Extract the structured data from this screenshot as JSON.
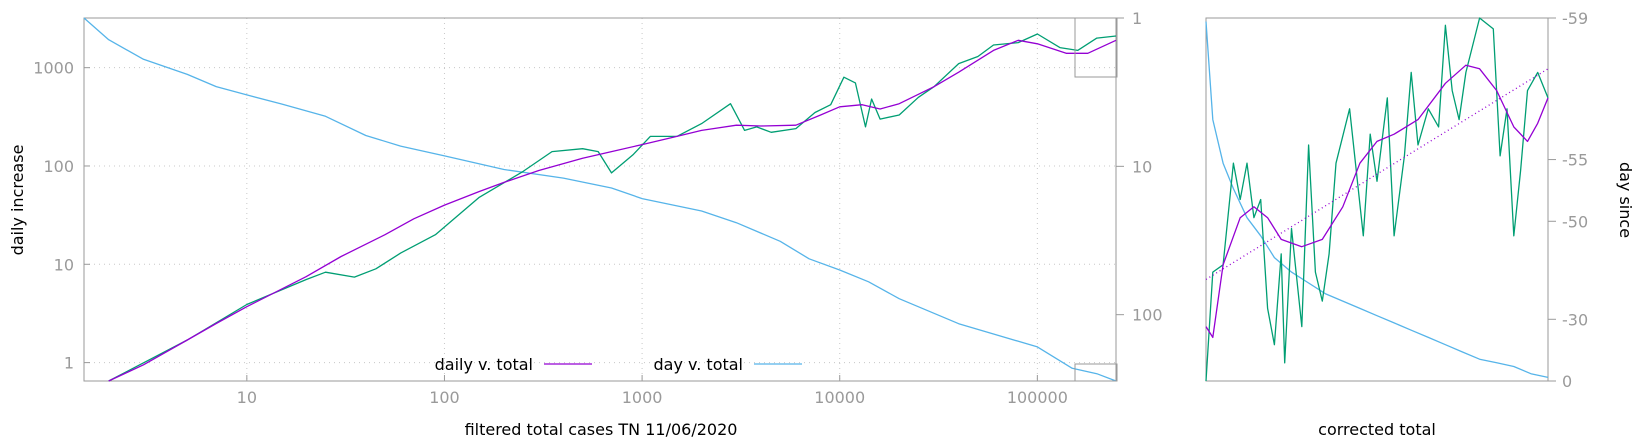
{
  "colors": {
    "daily": "#9400d3",
    "day": "#56b4e9",
    "raw": "#009e73",
    "axis": "#9a9a9a",
    "grid": "#c8c8c8"
  },
  "chart_data": [
    {
      "type": "line",
      "xlabel": "filtered total cases TN 11/06/2020",
      "ylabel": "daily increase",
      "y2label": "",
      "xscale": "log",
      "yscale": "log",
      "y2scale": "log-reversed",
      "xlim": [
        1.5,
        250000
      ],
      "ylim": [
        0.65,
        3200
      ],
      "y2lim": [
        1,
        280
      ],
      "xticks": [
        "10",
        "100",
        "1000",
        "10000",
        "100000"
      ],
      "yticks": [
        "1",
        "10",
        "100",
        "1000"
      ],
      "y2ticks": [
        "1",
        "10",
        "100"
      ],
      "grid": true,
      "legend_position": "bottom-center",
      "series": [
        {
          "name": "daily v. total",
          "axis": "y",
          "x": [
            2,
            3,
            5,
            7,
            10,
            20,
            30,
            50,
            70,
            100,
            150,
            200,
            300,
            500,
            700,
            1000,
            1500,
            2000,
            3000,
            4000,
            6000,
            8000,
            10000,
            13000,
            16000,
            20000,
            30000,
            40000,
            60000,
            80000,
            100000,
            140000,
            180000,
            250000
          ],
          "y": [
            0.6,
            0.95,
            1.7,
            2.5,
            3.7,
            7.5,
            12,
            20,
            29,
            40,
            55,
            68,
            90,
            120,
            140,
            165,
            200,
            230,
            260,
            255,
            260,
            330,
            400,
            420,
            380,
            430,
            640,
            900,
            1500,
            1900,
            1750,
            1400,
            1400,
            1900
          ]
        },
        {
          "name": "day v. total",
          "axis": "y2",
          "x": [
            1.5,
            2,
            3,
            5,
            7,
            10,
            15,
            25,
            40,
            60,
            100,
            200,
            400,
            700,
            1000,
            2000,
            3000,
            5000,
            7000,
            10000,
            14000,
            20000,
            40000,
            60000,
            100000,
            150000,
            200000,
            250000
          ],
          "y": [
            1,
            1.4,
            1.9,
            2.4,
            2.9,
            3.3,
            3.8,
            4.6,
            6.2,
            7.3,
            8.5,
            10.5,
            12,
            14,
            16.5,
            20,
            24,
            32,
            42,
            50,
            60,
            78,
            115,
            135,
            165,
            230,
            250,
            280
          ]
        },
        {
          "name": "",
          "axis": "y",
          "x": [
            2,
            5,
            10,
            20,
            25,
            35,
            45,
            60,
            90,
            150,
            250,
            350,
            500,
            600,
            700,
            900,
            1100,
            1500,
            2000,
            2800,
            3300,
            3800,
            4500,
            6000,
            7500,
            9000,
            10500,
            12000,
            13500,
            14500,
            16000,
            20000,
            25000,
            30000,
            40000,
            50000,
            60000,
            80000,
            100000,
            130000,
            160000,
            200000,
            250000
          ],
          "y": [
            0.6,
            1.7,
            3.9,
            7,
            8.3,
            7.4,
            9,
            13,
            20,
            48,
            88,
            140,
            150,
            140,
            85,
            130,
            200,
            200,
            270,
            430,
            230,
            250,
            220,
            240,
            350,
            420,
            800,
            700,
            250,
            480,
            300,
            330,
            500,
            640,
            1100,
            1300,
            1700,
            1800,
            2200,
            1600,
            1500,
            2000,
            2100
          ]
        }
      ]
    },
    {
      "type": "line",
      "xlabel": "corrected total",
      "ylabel": "",
      "y2label": "day since",
      "y2ticks": [
        "-59",
        "-55",
        "-50",
        "-30",
        "0"
      ],
      "grid": false,
      "series": [
        {
          "name": "",
          "axis": "y",
          "x": [
            0,
            0.02,
            0.05,
            0.1,
            0.14,
            0.18,
            0.22,
            0.28,
            0.34,
            0.4,
            0.45,
            0.5,
            0.55,
            0.62,
            0.7,
            0.76,
            0.8,
            0.85,
            0.9,
            0.94,
            0.97,
            1
          ],
          "y": [
            0.15,
            0.12,
            0.32,
            0.45,
            0.48,
            0.45,
            0.39,
            0.37,
            0.39,
            0.48,
            0.6,
            0.66,
            0.68,
            0.72,
            0.82,
            0.87,
            0.86,
            0.8,
            0.7,
            0.66,
            0.71,
            0.78
          ]
        },
        {
          "name": "",
          "axis": "y",
          "x": [
            0,
            1
          ],
          "y": [
            0.28,
            0.86
          ]
        },
        {
          "name": "",
          "axis": "y",
          "x": [
            0,
            0.02,
            0.05,
            0.08,
            0.1,
            0.12,
            0.14,
            0.16,
            0.18,
            0.2,
            0.22,
            0.23,
            0.25,
            0.28,
            0.3,
            0.32,
            0.34,
            0.36,
            0.38,
            0.42,
            0.46,
            0.48,
            0.5,
            0.53,
            0.55,
            0.58,
            0.6,
            0.62,
            0.65,
            0.68,
            0.7,
            0.72,
            0.74,
            0.76,
            0.8,
            0.84,
            0.86,
            0.88,
            0.9,
            0.92,
            0.94,
            0.97,
            1
          ],
          "y": [
            0.0,
            0.3,
            0.32,
            0.6,
            0.5,
            0.6,
            0.45,
            0.5,
            0.2,
            0.1,
            0.35,
            0.05,
            0.42,
            0.15,
            0.65,
            0.3,
            0.22,
            0.35,
            0.6,
            0.75,
            0.4,
            0.68,
            0.55,
            0.78,
            0.4,
            0.62,
            0.85,
            0.65,
            0.75,
            0.7,
            0.98,
            0.8,
            0.72,
            0.85,
            1.0,
            0.97,
            0.62,
            0.75,
            0.4,
            0.58,
            0.8,
            0.85,
            0.78
          ]
        },
        {
          "name": "",
          "axis": "y2",
          "x": [
            0,
            0.02,
            0.05,
            0.08,
            0.12,
            0.16,
            0.2,
            0.25,
            0.3,
            0.35,
            0.4,
            0.45,
            0.5,
            0.55,
            0.6,
            0.65,
            0.7,
            0.75,
            0.8,
            0.85,
            0.9,
            0.95,
            1
          ],
          "y": [
            0.01,
            0.28,
            0.4,
            0.47,
            0.55,
            0.6,
            0.66,
            0.7,
            0.73,
            0.76,
            0.78,
            0.8,
            0.82,
            0.84,
            0.86,
            0.88,
            0.9,
            0.92,
            0.94,
            0.95,
            0.96,
            0.98,
            0.99
          ]
        }
      ]
    }
  ]
}
